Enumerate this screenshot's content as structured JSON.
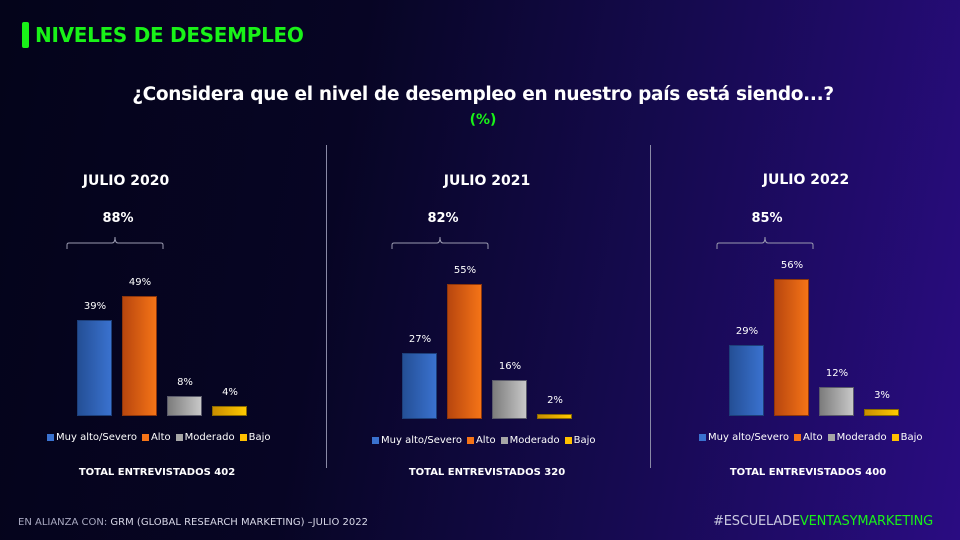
{
  "header": {
    "title": "NIVELES DE DESEMPLEO",
    "question": "¿Considera que el nivel de desempleo en nuestro país está siendo...?",
    "unit": "(%)"
  },
  "colors": {
    "accent_green": "#19f218",
    "muy_alto": "#3a72cf",
    "alto": "#f57417",
    "moderado": "#bfbfbf",
    "bajo": "#ffca00"
  },
  "legend": [
    {
      "label": "Muy alto/Severo",
      "color": "#3a72cf"
    },
    {
      "label": "Alto",
      "color": "#f57417"
    },
    {
      "label": "Moderado",
      "color": "#a6a6a6"
    },
    {
      "label": "Bajo",
      "color": "#ffc000"
    }
  ],
  "chart_data": [
    {
      "type": "bar",
      "title": "JULIO 2020",
      "categories": [
        "Muy alto/Severo",
        "Alto",
        "Moderado",
        "Bajo"
      ],
      "values": [
        39,
        49,
        8,
        4
      ],
      "value_labels": [
        "39%",
        "49%",
        "8%",
        "4%"
      ],
      "bracket_label": "88%",
      "bracket_spans": [
        "Muy alto/Severo",
        "Alto"
      ],
      "footer": "TOTAL ENTREVISTADOS 402",
      "xlabel": "",
      "ylabel": "",
      "ylim": [
        0,
        60
      ],
      "grid": false,
      "legend": "bottom"
    },
    {
      "type": "bar",
      "title": "JULIO 2021",
      "categories": [
        "Muy alto/Severo",
        "Alto",
        "Moderado",
        "Bajo"
      ],
      "values": [
        27,
        55,
        16,
        2
      ],
      "value_labels": [
        "27%",
        "55%",
        "16%",
        "2%"
      ],
      "bracket_label": "82%",
      "bracket_spans": [
        "Muy alto/Severo",
        "Alto"
      ],
      "footer": "TOTAL ENTREVISTADOS 320",
      "xlabel": "",
      "ylabel": "",
      "ylim": [
        0,
        60
      ],
      "grid": false,
      "legend": "bottom"
    },
    {
      "type": "bar",
      "title": "JULIO 2022",
      "categories": [
        "Muy alto/Severo",
        "Alto",
        "Moderado",
        "Bajo"
      ],
      "values": [
        29,
        56,
        12,
        3
      ],
      "value_labels": [
        "29%",
        "56%",
        "12%",
        "3%"
      ],
      "bracket_label": "85%",
      "bracket_spans": [
        "Muy alto/Severo",
        "Alto"
      ],
      "footer": "TOTAL ENTREVISTADOS 400",
      "xlabel": "",
      "ylabel": "",
      "ylim": [
        0,
        60
      ],
      "grid": false,
      "legend": "bottom"
    }
  ],
  "footer": {
    "alliance_prefix": "EN ALIANZA CON:",
    "alliance_text": " GRM (GLOBAL RESEARCH MARKETING) –JULIO 2022",
    "hashtag_part1": "#ESCUELADE",
    "hashtag_part2": "VENTASYMARKETING"
  }
}
